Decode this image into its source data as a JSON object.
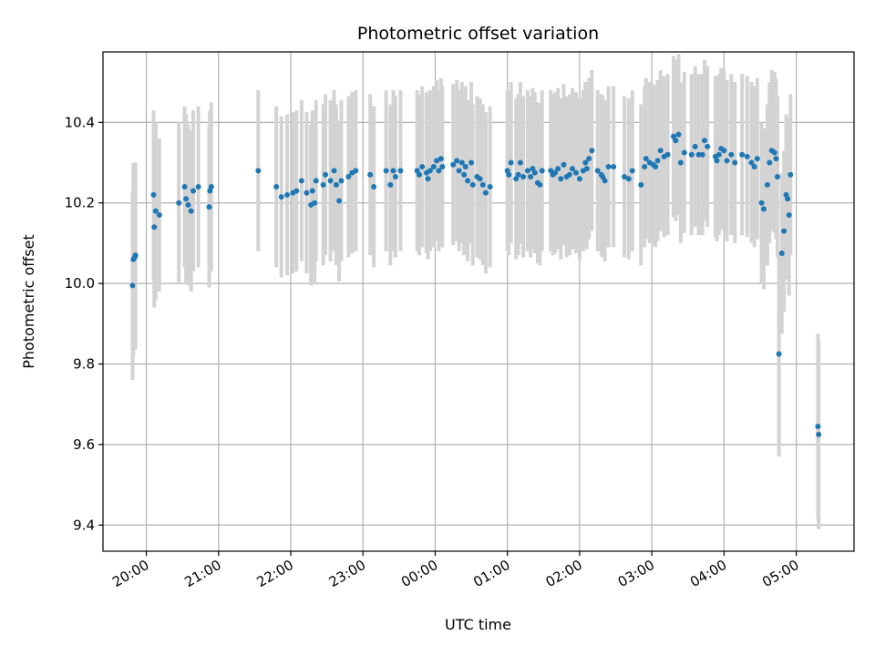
{
  "chart_data": {
    "type": "scatter",
    "title": "Photometric offset variation",
    "xlabel": "UTC time",
    "ylabel": "Photometric offset",
    "x_unit": "hours UTC (values past 24 are after midnight)",
    "xlim": [
      19.4,
      29.8
    ],
    "ylim": [
      9.335,
      10.575
    ],
    "x_ticks": [
      {
        "v": 20,
        "label": "20:00"
      },
      {
        "v": 21,
        "label": "21:00"
      },
      {
        "v": 22,
        "label": "22:00"
      },
      {
        "v": 23,
        "label": "23:00"
      },
      {
        "v": 24,
        "label": "00:00"
      },
      {
        "v": 25,
        "label": "01:00"
      },
      {
        "v": 26,
        "label": "02:00"
      },
      {
        "v": 27,
        "label": "03:00"
      },
      {
        "v": 28,
        "label": "04:00"
      },
      {
        "v": 29,
        "label": "05:00"
      }
    ],
    "y_ticks": [
      {
        "v": 9.4,
        "label": "9.4"
      },
      {
        "v": 9.6,
        "label": "9.6"
      },
      {
        "v": 9.8,
        "label": "9.8"
      },
      {
        "v": 10.0,
        "label": "10.0"
      },
      {
        "v": 10.2,
        "label": "10.2"
      },
      {
        "v": 10.4,
        "label": "10.4"
      }
    ],
    "grid": true,
    "colors": {
      "points": "#1f77b4",
      "errorbars": "#d3d3d3",
      "grid": "#b0b0b0"
    },
    "points": [
      [
        19.81,
        9.995,
        0.235
      ],
      [
        19.82,
        10.06,
        0.24
      ],
      [
        19.85,
        10.07,
        0.23
      ],
      [
        19.84,
        10.065,
        0.23
      ],
      [
        20.1,
        10.22,
        0.21
      ],
      [
        20.11,
        10.14,
        0.2
      ],
      [
        20.13,
        10.18,
        0.22
      ],
      [
        20.18,
        10.17,
        0.19
      ],
      [
        20.45,
        10.2,
        0.2
      ],
      [
        20.53,
        10.24,
        0.2
      ],
      [
        20.55,
        10.21,
        0.21
      ],
      [
        20.58,
        10.195,
        0.2
      ],
      [
        20.62,
        10.18,
        0.2
      ],
      [
        20.65,
        10.23,
        0.2
      ],
      [
        20.72,
        10.24,
        0.2
      ],
      [
        20.87,
        10.19,
        0.2
      ],
      [
        20.9,
        10.24,
        0.21
      ],
      [
        20.88,
        10.23,
        0.2
      ],
      [
        21.55,
        10.28,
        0.2
      ],
      [
        21.8,
        10.24,
        0.2
      ],
      [
        21.87,
        10.215,
        0.2
      ],
      [
        21.95,
        10.22,
        0.2
      ],
      [
        22.03,
        10.225,
        0.2
      ],
      [
        22.08,
        10.23,
        0.2
      ],
      [
        22.15,
        10.255,
        0.2
      ],
      [
        22.22,
        10.225,
        0.2
      ],
      [
        22.28,
        10.195,
        0.2
      ],
      [
        22.3,
        10.23,
        0.2
      ],
      [
        22.33,
        10.2,
        0.2
      ],
      [
        22.35,
        10.255,
        0.2
      ],
      [
        22.45,
        10.245,
        0.2
      ],
      [
        22.48,
        10.27,
        0.2
      ],
      [
        22.55,
        10.255,
        0.2
      ],
      [
        22.6,
        10.28,
        0.2
      ],
      [
        22.63,
        10.245,
        0.2
      ],
      [
        22.67,
        10.205,
        0.2
      ],
      [
        22.7,
        10.255,
        0.2
      ],
      [
        22.8,
        10.265,
        0.2
      ],
      [
        22.85,
        10.275,
        0.2
      ],
      [
        22.9,
        10.28,
        0.2
      ],
      [
        23.1,
        10.27,
        0.2
      ],
      [
        23.15,
        10.24,
        0.2
      ],
      [
        23.32,
        10.28,
        0.2
      ],
      [
        23.38,
        10.245,
        0.2
      ],
      [
        23.42,
        10.28,
        0.2
      ],
      [
        23.45,
        10.265,
        0.2
      ],
      [
        23.52,
        10.28,
        0.2
      ],
      [
        23.75,
        10.28,
        0.2
      ],
      [
        23.78,
        10.27,
        0.2
      ],
      [
        23.82,
        10.29,
        0.2
      ],
      [
        23.88,
        10.275,
        0.2
      ],
      [
        23.9,
        10.26,
        0.2
      ],
      [
        23.93,
        10.28,
        0.2
      ],
      [
        23.98,
        10.29,
        0.2
      ],
      [
        24.02,
        10.305,
        0.2
      ],
      [
        24.05,
        10.28,
        0.2
      ],
      [
        24.08,
        10.31,
        0.2
      ],
      [
        24.1,
        10.29,
        0.2
      ],
      [
        24.25,
        10.295,
        0.2
      ],
      [
        24.3,
        10.305,
        0.2
      ],
      [
        24.33,
        10.28,
        0.2
      ],
      [
        24.37,
        10.3,
        0.2
      ],
      [
        24.4,
        10.27,
        0.2
      ],
      [
        24.42,
        10.29,
        0.2
      ],
      [
        24.45,
        10.255,
        0.2
      ],
      [
        24.5,
        10.3,
        0.2
      ],
      [
        24.52,
        10.245,
        0.2
      ],
      [
        24.58,
        10.265,
        0.2
      ],
      [
        24.62,
        10.26,
        0.2
      ],
      [
        24.66,
        10.245,
        0.2
      ],
      [
        24.7,
        10.225,
        0.2
      ],
      [
        24.76,
        10.24,
        0.2
      ],
      [
        25.0,
        10.28,
        0.2
      ],
      [
        25.02,
        10.27,
        0.2
      ],
      [
        25.05,
        10.3,
        0.2
      ],
      [
        25.12,
        10.26,
        0.2
      ],
      [
        25.15,
        10.27,
        0.2
      ],
      [
        25.18,
        10.3,
        0.2
      ],
      [
        25.22,
        10.265,
        0.2
      ],
      [
        25.28,
        10.28,
        0.2
      ],
      [
        25.32,
        10.265,
        0.2
      ],
      [
        25.35,
        10.285,
        0.2
      ],
      [
        25.38,
        10.275,
        0.2
      ],
      [
        25.42,
        10.25,
        0.2
      ],
      [
        25.45,
        10.245,
        0.2
      ],
      [
        25.48,
        10.28,
        0.2
      ],
      [
        25.6,
        10.28,
        0.2
      ],
      [
        25.63,
        10.27,
        0.2
      ],
      [
        25.66,
        10.275,
        0.2
      ],
      [
        25.7,
        10.285,
        0.2
      ],
      [
        25.74,
        10.26,
        0.2
      ],
      [
        25.78,
        10.295,
        0.2
      ],
      [
        25.82,
        10.265,
        0.2
      ],
      [
        25.86,
        10.27,
        0.2
      ],
      [
        25.9,
        10.285,
        0.2
      ],
      [
        25.95,
        10.275,
        0.2
      ],
      [
        26.0,
        10.26,
        0.2
      ],
      [
        26.05,
        10.28,
        0.2
      ],
      [
        26.08,
        10.3,
        0.2
      ],
      [
        26.1,
        10.285,
        0.2
      ],
      [
        26.13,
        10.31,
        0.2
      ],
      [
        26.17,
        10.33,
        0.2
      ],
      [
        26.25,
        10.28,
        0.2
      ],
      [
        26.3,
        10.27,
        0.2
      ],
      [
        26.32,
        10.265,
        0.2
      ],
      [
        26.35,
        10.255,
        0.2
      ],
      [
        26.4,
        10.29,
        0.2
      ],
      [
        26.47,
        10.29,
        0.2
      ],
      [
        26.62,
        10.265,
        0.2
      ],
      [
        26.68,
        10.26,
        0.2
      ],
      [
        26.73,
        10.28,
        0.2
      ],
      [
        26.85,
        10.245,
        0.2
      ],
      [
        26.9,
        10.29,
        0.2
      ],
      [
        26.92,
        10.31,
        0.2
      ],
      [
        26.97,
        10.3,
        0.2
      ],
      [
        27.02,
        10.295,
        0.2
      ],
      [
        27.05,
        10.29,
        0.2
      ],
      [
        27.08,
        10.305,
        0.2
      ],
      [
        27.12,
        10.33,
        0.2
      ],
      [
        27.17,
        10.315,
        0.2
      ],
      [
        27.22,
        10.32,
        0.2
      ],
      [
        27.3,
        10.365,
        0.2
      ],
      [
        27.33,
        10.355,
        0.2
      ],
      [
        27.37,
        10.37,
        0.2
      ],
      [
        27.4,
        10.3,
        0.2
      ],
      [
        27.45,
        10.325,
        0.2
      ],
      [
        27.55,
        10.32,
        0.2
      ],
      [
        27.6,
        10.34,
        0.2
      ],
      [
        27.65,
        10.32,
        0.2
      ],
      [
        27.7,
        10.32,
        0.2
      ],
      [
        27.73,
        10.355,
        0.2
      ],
      [
        27.77,
        10.34,
        0.2
      ],
      [
        27.88,
        10.315,
        0.2
      ],
      [
        27.9,
        10.305,
        0.2
      ],
      [
        27.93,
        10.32,
        0.2
      ],
      [
        27.96,
        10.335,
        0.2
      ],
      [
        28.0,
        10.33,
        0.2
      ],
      [
        28.04,
        10.305,
        0.2
      ],
      [
        28.1,
        10.32,
        0.2
      ],
      [
        28.15,
        10.3,
        0.2
      ],
      [
        28.25,
        10.32,
        0.2
      ],
      [
        28.32,
        10.315,
        0.2
      ],
      [
        28.38,
        10.3,
        0.2
      ],
      [
        28.42,
        10.29,
        0.2
      ],
      [
        28.46,
        10.31,
        0.2
      ],
      [
        28.52,
        10.2,
        0.2
      ],
      [
        28.55,
        10.185,
        0.2
      ],
      [
        28.6,
        10.245,
        0.2
      ],
      [
        28.63,
        10.3,
        0.2
      ],
      [
        28.66,
        10.33,
        0.2
      ],
      [
        28.7,
        10.325,
        0.2
      ],
      [
        28.72,
        10.31,
        0.2
      ],
      [
        28.74,
        10.265,
        0.2
      ],
      [
        28.76,
        9.825,
        0.255
      ],
      [
        28.8,
        10.075,
        0.2
      ],
      [
        28.83,
        10.13,
        0.2
      ],
      [
        28.86,
        10.22,
        0.2
      ],
      [
        28.88,
        10.21,
        0.2
      ],
      [
        28.9,
        10.17,
        0.2
      ],
      [
        28.92,
        10.27,
        0.2
      ],
      [
        29.3,
        9.645,
        0.23
      ],
      [
        29.31,
        9.625,
        0.235
      ]
    ]
  }
}
